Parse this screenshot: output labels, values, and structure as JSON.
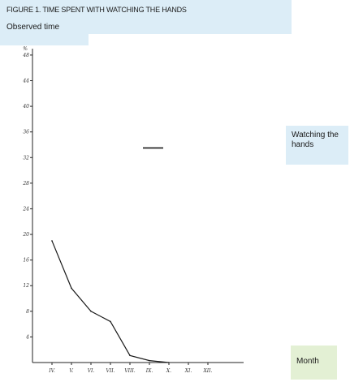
{
  "title": "FIGURE 1. TIME SPENT WITH WATCHING THE HANDS",
  "subtitle": "Observed time",
  "legend_label": "Watching the hands",
  "x_axis_label": "Month",
  "chart_data": {
    "type": "line",
    "title": "FIGURE 1. TIME SPENT WITH WATCHING THE HANDS",
    "ylabel": "Observed time",
    "xlabel": "Month",
    "y_unit": "%",
    "categories": [
      "IV.",
      "V.",
      "VI.",
      "VII.",
      "VIII.",
      "IX.",
      "X.",
      "XI.",
      "XII."
    ],
    "y_ticks": [
      4,
      8,
      12,
      16,
      20,
      24,
      28,
      32,
      36,
      40,
      44,
      48
    ],
    "ylim": [
      0,
      49
    ],
    "grid": false,
    "legend_placement": "right",
    "series": [
      {
        "name": "Watching the hands",
        "values": [
          19,
          11.6,
          8,
          6.4,
          1.1,
          0.3,
          0,
          null,
          null
        ]
      }
    ],
    "line_color": "#1a1a1a"
  }
}
